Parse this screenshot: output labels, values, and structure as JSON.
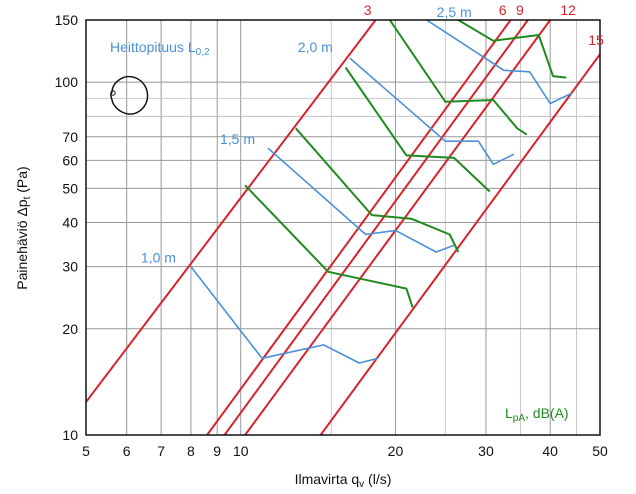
{
  "chart_data": {
    "type": "line",
    "title": "",
    "xlabel": "Ilmavirta q",
    "xlabel_sub": "v",
    "xlabel_unit": " (l/s)",
    "ylabel": "Painehäviö Δp",
    "ylabel_sub": "t",
    "ylabel_unit": " (Pa)",
    "x_scale": "log",
    "y_scale": "log",
    "xlim": [
      5,
      50
    ],
    "ylim": [
      10,
      150
    ],
    "grid": true,
    "x_ticks": [
      5,
      6,
      7,
      8,
      9,
      10,
      20,
      30,
      40,
      50
    ],
    "y_ticks": [
      10,
      20,
      30,
      40,
      50,
      60,
      70,
      100,
      150
    ],
    "colors": {
      "pressure_ratio": "#d8232a",
      "throw": "#4a90d9",
      "sound": "#1f8a1f",
      "grid": "#999999",
      "text": "#111111"
    },
    "pressure_ratio_lines": [
      {
        "label": "3",
        "points": [
          [
            5,
            12.4
          ],
          [
            18.3,
            150
          ]
        ]
      },
      {
        "label": "6",
        "points": [
          [
            8.6,
            10
          ],
          [
            33.5,
            150
          ]
        ]
      },
      {
        "label": "9",
        "points": [
          [
            9.3,
            10
          ],
          [
            36.2,
            150
          ]
        ]
      },
      {
        "label": "12",
        "points": [
          [
            10.2,
            10
          ],
          [
            40.0,
            150
          ]
        ]
      },
      {
        "label": "15",
        "points": [
          [
            14.3,
            10
          ],
          [
            50,
            120
          ]
        ]
      }
    ],
    "throw_series": {
      "label_prefix": "Heittopituus L",
      "label_sub": "0,2",
      "lines": [
        {
          "label": "1,0 m",
          "points": [
            [
              8,
              30
            ],
            [
              11,
              16.5
            ],
            [
              14.5,
              18
            ],
            [
              17,
              16
            ],
            [
              18.5,
              16.5
            ]
          ]
        },
        {
          "label": "1,5 m",
          "points": [
            [
              11.3,
              65
            ],
            [
              17.5,
              37
            ],
            [
              20,
              38
            ],
            [
              24,
              33
            ],
            [
              26,
              34.5
            ]
          ]
        },
        {
          "label": "2,0 m",
          "points": [
            [
              16.3,
              117
            ],
            [
              25,
              68
            ],
            [
              29,
              68
            ],
            [
              31,
              58.5
            ],
            [
              34,
              62.5
            ]
          ]
        },
        {
          "label": "2,5 m",
          "points": [
            [
              23,
              150
            ],
            [
              32.5,
              108
            ],
            [
              36.5,
              107
            ],
            [
              40,
              87
            ],
            [
              44,
              93
            ]
          ]
        }
      ]
    },
    "sound_series": {
      "label": "L",
      "label_sub": "pA",
      "label_unit": ", dB(A)",
      "lines": [
        {
          "points": [
            [
              10.2,
              51
            ],
            [
              14.8,
              29
            ],
            [
              21,
              26
            ],
            [
              21.6,
              23
            ]
          ]
        },
        {
          "points": [
            [
              12.8,
              74
            ],
            [
              18,
              42
            ],
            [
              21.5,
              41
            ],
            [
              25.5,
              37
            ],
            [
              26.5,
              33
            ]
          ]
        },
        {
          "points": [
            [
              16,
              110
            ],
            [
              21,
              62
            ],
            [
              26,
              61
            ],
            [
              30.5,
              49
            ]
          ]
        },
        {
          "points": [
            [
              19.5,
              150
            ],
            [
              25,
              88
            ],
            [
              31,
              89
            ],
            [
              34.5,
              74
            ],
            [
              36,
              71
            ]
          ]
        },
        {
          "points": [
            [
              26.5,
              150
            ],
            [
              31,
              131
            ],
            [
              38,
              136
            ],
            [
              40.5,
              104
            ],
            [
              43,
              103
            ]
          ]
        }
      ]
    }
  },
  "pattern_icon": "cardioid-pattern-icon"
}
